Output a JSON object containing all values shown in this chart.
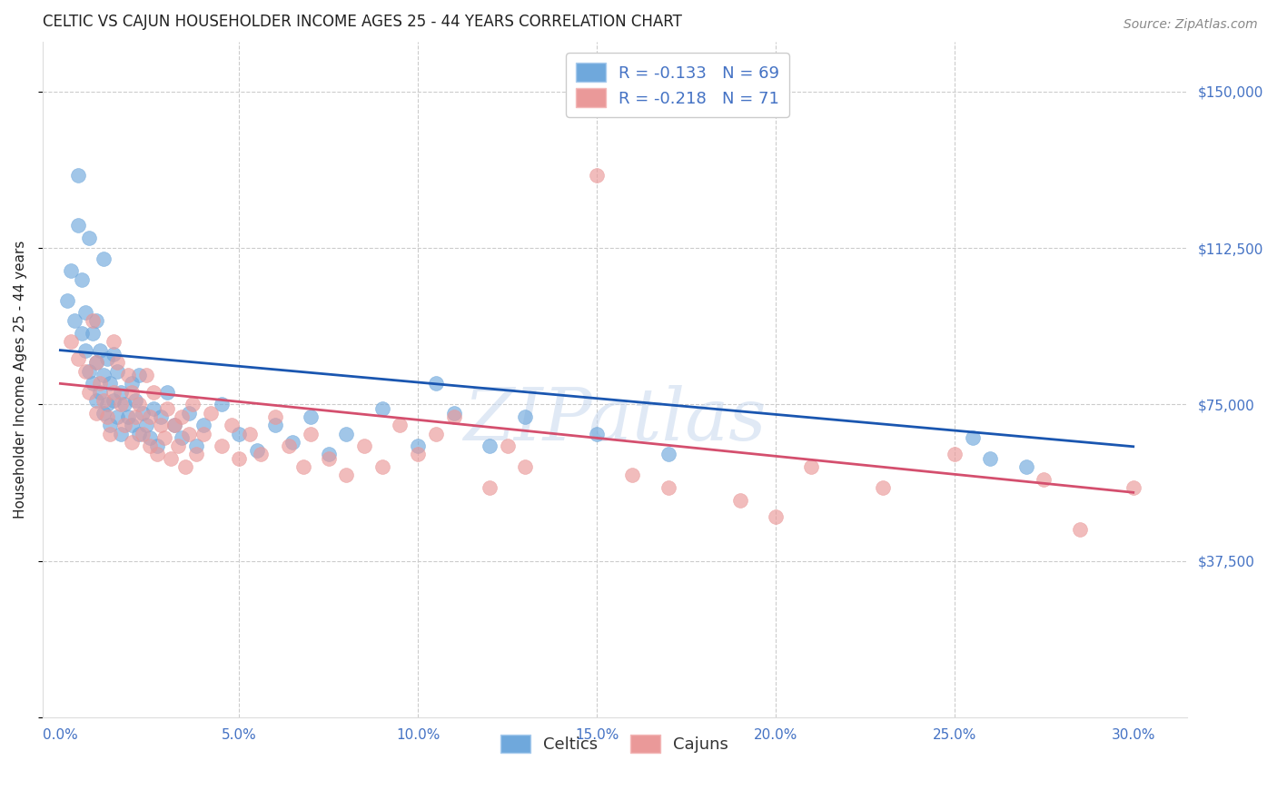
{
  "title": "CELTIC VS CAJUN HOUSEHOLDER INCOME AGES 25 - 44 YEARS CORRELATION CHART",
  "source": "Source: ZipAtlas.com",
  "ylabel": "Householder Income Ages 25 - 44 years",
  "ylim": [
    0,
    162000
  ],
  "xlim": [
    -0.5,
    31.5
  ],
  "watermark": "ZIPatlas",
  "legend_blue_label": "R = -0.133   N = 69",
  "legend_pink_label": "R = -0.218   N = 71",
  "legend_bottom_blue": "Celtics",
  "legend_bottom_pink": "Cajuns",
  "blue_color": "#6fa8dc",
  "pink_color": "#ea9999",
  "blue_line_color": "#1a56b0",
  "pink_line_color": "#d44f6e",
  "title_color": "#222222",
  "source_color": "#888888",
  "axis_label_color": "#222222",
  "tick_color": "#4472c4",
  "grid_color": "#cccccc",
  "background_color": "#ffffff",
  "legend_text_color": "#4472c4",
  "celtic_blue_intercept": 88000,
  "celtic_blue_slope": -770,
  "cajun_pink_intercept": 80000,
  "cajun_pink_slope": -870
}
